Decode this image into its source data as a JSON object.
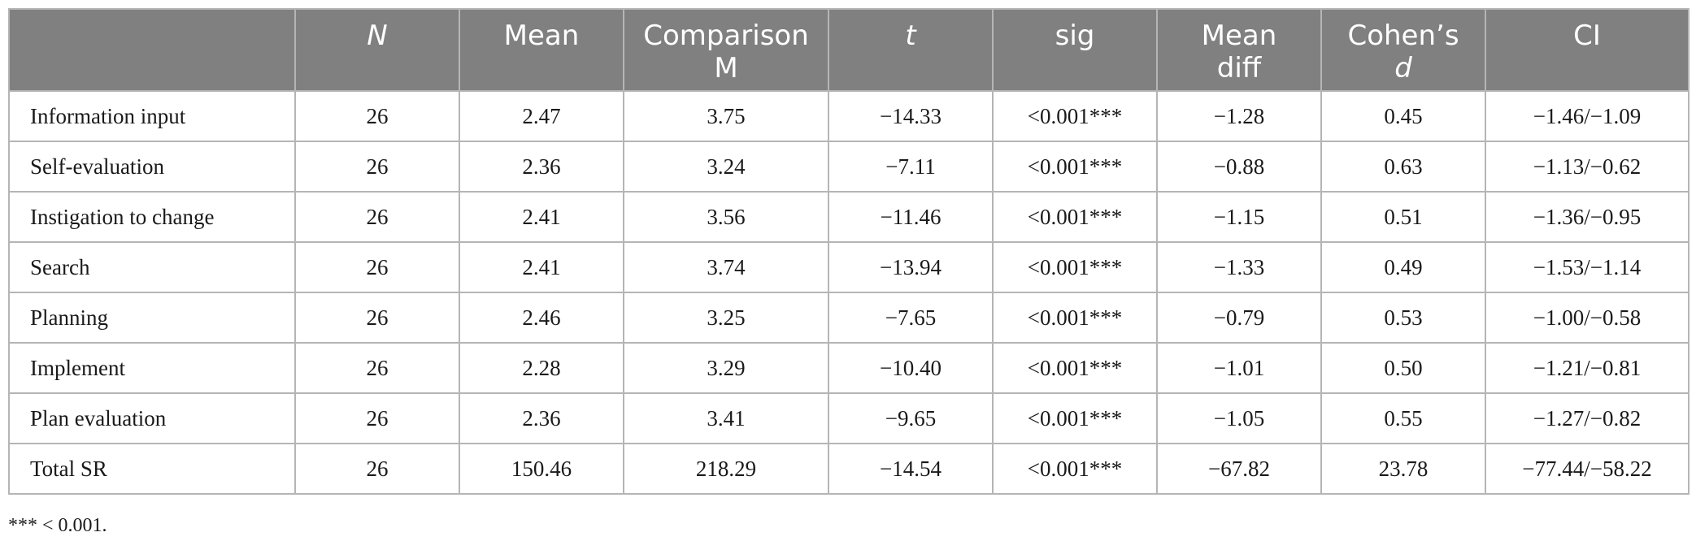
{
  "table": {
    "headers": [
      {
        "text": "",
        "italic": false
      },
      {
        "text": "N",
        "italic": true
      },
      {
        "text": "Mean",
        "italic": false
      },
      {
        "line1": "Comparison",
        "line2": "M",
        "italic2": false
      },
      {
        "text": "t",
        "italic": true
      },
      {
        "text": "sig",
        "italic": false
      },
      {
        "line1": "Mean",
        "line2": "diff",
        "italic2": false
      },
      {
        "line1": "Cohen’s",
        "line2": "d",
        "italic2": true
      },
      {
        "text": "CI",
        "italic": false
      }
    ],
    "rows": [
      [
        "Information input",
        "26",
        "2.47",
        "3.75",
        "−14.33",
        "<0.001***",
        "−1.28",
        "0.45",
        "−1.46/−1.09"
      ],
      [
        "Self-evaluation",
        "26",
        "2.36",
        "3.24",
        "−7.11",
        "<0.001***",
        "−0.88",
        "0.63",
        "−1.13/−0.62"
      ],
      [
        "Instigation to change",
        "26",
        "2.41",
        "3.56",
        "−11.46",
        "<0.001***",
        "−1.15",
        "0.51",
        "−1.36/−0.95"
      ],
      [
        "Search",
        "26",
        "2.41",
        "3.74",
        "−13.94",
        "<0.001***",
        "−1.33",
        "0.49",
        "−1.53/−1.14"
      ],
      [
        "Planning",
        "26",
        "2.46",
        "3.25",
        "−7.65",
        "<0.001***",
        "−0.79",
        "0.53",
        "−1.00/−0.58"
      ],
      [
        "Implement",
        "26",
        "2.28",
        "3.29",
        "−10.40",
        "<0.001***",
        "−1.01",
        "0.50",
        "−1.21/−0.81"
      ],
      [
        "Plan evaluation",
        "26",
        "2.36",
        "3.41",
        "−9.65",
        "<0.001***",
        "−1.05",
        "0.55",
        "−1.27/−0.82"
      ],
      [
        "Total SR",
        "26",
        "150.46",
        "218.29",
        "−14.54",
        "<0.001***",
        "−67.82",
        "23.78",
        "−77.44/−58.22"
      ]
    ]
  },
  "footnote": "*** < 0.001."
}
